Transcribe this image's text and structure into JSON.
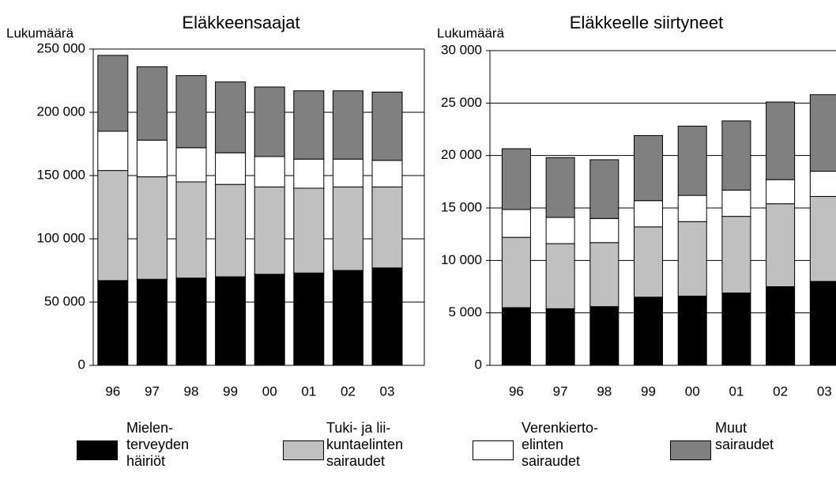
{
  "chart_data": [
    {
      "type": "stacked-bar",
      "title": "Eläkkeensaajat",
      "y_label": "Lukumäärä",
      "categories": [
        "96",
        "97",
        "98",
        "99",
        "00",
        "01",
        "02",
        "03"
      ],
      "ylim": [
        0,
        250000
      ],
      "yticks": [
        0,
        {
          "value": 50000,
          "label": "50 000"
        },
        {
          "value": 100000,
          "label": "100 000"
        },
        {
          "value": 150000,
          "label": "150 000"
        },
        {
          "value": 200000,
          "label": "200 000"
        },
        {
          "value": 250000,
          "label": "250 000"
        }
      ],
      "grid": true,
      "series": [
        {
          "name": "Mielen-\nterveyden\nhäiriöt",
          "color": "#000000",
          "values": [
            67000,
            68000,
            69000,
            70000,
            72000,
            73000,
            75000,
            77000
          ]
        },
        {
          "name": "Tuki- ja lii-\nkuntaelinten\nsairaudet",
          "color": "#c0c0c0",
          "values": [
            87000,
            81000,
            76000,
            73000,
            69000,
            67000,
            66000,
            64000
          ]
        },
        {
          "name": "Verenkierto-\nelinten\nsairaudet",
          "color": "#ffffff",
          "values": [
            31000,
            29000,
            27000,
            25000,
            24000,
            23000,
            22000,
            21000
          ]
        },
        {
          "name": "Muut\nsairaudet",
          "color": "#808080",
          "values": [
            60000,
            58000,
            57000,
            56000,
            55000,
            54000,
            54000,
            54000
          ]
        }
      ]
    },
    {
      "type": "stacked-bar",
      "title": "Eläkkeelle siirtyneet",
      "y_label": "Lukumäärä",
      "categories": [
        "96",
        "97",
        "98",
        "99",
        "00",
        "01",
        "02",
        "03"
      ],
      "ylim": [
        0,
        30000
      ],
      "yticks": [
        0,
        {
          "value": 5000,
          "label": "5 000"
        },
        {
          "value": 10000,
          "label": "10 000"
        },
        {
          "value": 15000,
          "label": "15 000"
        },
        {
          "value": 20000,
          "label": "20 000"
        },
        {
          "value": 25000,
          "label": "25 000"
        },
        {
          "value": 30000,
          "label": "30 000"
        }
      ],
      "grid": true,
      "series": [
        {
          "color": "#000000",
          "values": [
            5500,
            5400,
            5600,
            6500,
            6600,
            6900,
            7500,
            8000
          ]
        },
        {
          "color": "#c0c0c0",
          "values": [
            6700,
            6200,
            6100,
            6700,
            7100,
            7300,
            7900,
            8100
          ]
        },
        {
          "color": "#ffffff",
          "values": [
            2650,
            2500,
            2300,
            2500,
            2500,
            2500,
            2300,
            2400
          ]
        },
        {
          "color": "#808080",
          "values": [
            5800,
            5700,
            5600,
            6200,
            6600,
            6600,
            7400,
            7300
          ]
        }
      ]
    }
  ]
}
